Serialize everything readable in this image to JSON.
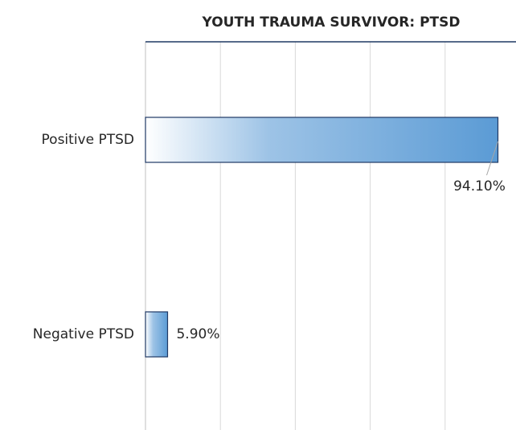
{
  "chart_data": {
    "type": "hbar",
    "title": "YOUTH TRAUMA SURVIVOR: PTSD",
    "categories": [
      "Positive PTSD",
      "Negative PTSD"
    ],
    "values": [
      94.1,
      5.9
    ],
    "value_labels": [
      "94.10%",
      "5.90%"
    ],
    "color": "#5b9bd5",
    "edge_color": "#1f3864",
    "xlim": [
      0,
      100
    ],
    "xticks": [
      0,
      20,
      40,
      60,
      80
    ],
    "grid": true
  }
}
